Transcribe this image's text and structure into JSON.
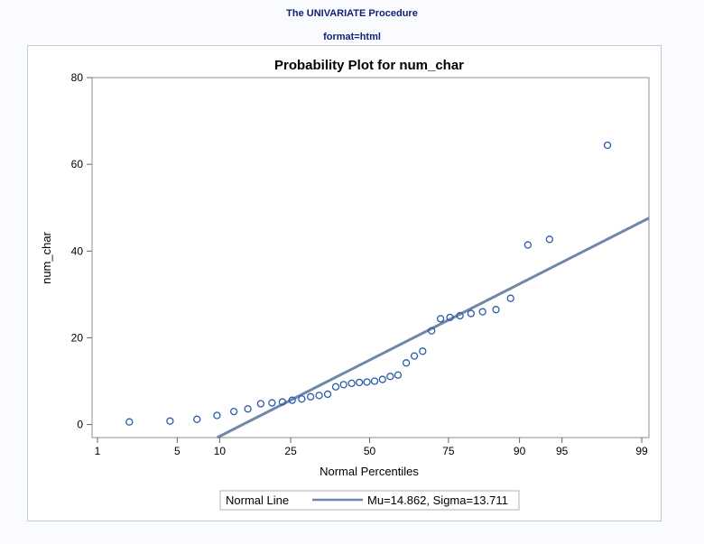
{
  "header": {
    "procedure_title": "The UNIVARIATE Procedure",
    "format_title": "format=html"
  },
  "chart_data": {
    "type": "scatter",
    "title": "Probability Plot for num_char",
    "xlabel": "Normal Percentiles",
    "ylabel": "num_char",
    "xscale": "normal-probability",
    "xticks": [
      1,
      5,
      10,
      25,
      50,
      75,
      90,
      95,
      99
    ],
    "xticklabels": [
      "1",
      "5",
      "10",
      "25",
      "50",
      "75",
      "90",
      "95",
      "99"
    ],
    "ylim": [
      -3,
      80
    ],
    "yticks": [
      0,
      20,
      40,
      60,
      80
    ],
    "grid": false,
    "legend_placement": "bottom",
    "legend": {
      "title": "Normal Line",
      "entry": "Mu=14.862, Sigma=13.711"
    },
    "reference_line": {
      "name": "Normal Line",
      "mu": 14.862,
      "sigma": 13.711,
      "color": "#6f87a8"
    },
    "marker_color": "#2a5aa8",
    "points": [
      {
        "x": 2.0,
        "y": 0.6
      },
      {
        "x": 4.4,
        "y": 0.8
      },
      {
        "x": 7.0,
        "y": 1.2
      },
      {
        "x": 9.6,
        "y": 2.1
      },
      {
        "x": 12.3,
        "y": 3.0
      },
      {
        "x": 14.9,
        "y": 3.6
      },
      {
        "x": 17.6,
        "y": 4.8
      },
      {
        "x": 20.2,
        "y": 5.0
      },
      {
        "x": 22.8,
        "y": 5.2
      },
      {
        "x": 25.4,
        "y": 5.6
      },
      {
        "x": 28.1,
        "y": 5.9
      },
      {
        "x": 30.7,
        "y": 6.4
      },
      {
        "x": 33.3,
        "y": 6.7
      },
      {
        "x": 36.0,
        "y": 7.0
      },
      {
        "x": 38.6,
        "y": 8.7
      },
      {
        "x": 41.2,
        "y": 9.2
      },
      {
        "x": 43.9,
        "y": 9.5
      },
      {
        "x": 46.5,
        "y": 9.7
      },
      {
        "x": 49.1,
        "y": 9.8
      },
      {
        "x": 51.7,
        "y": 10.0
      },
      {
        "x": 54.4,
        "y": 10.4
      },
      {
        "x": 57.0,
        "y": 11.1
      },
      {
        "x": 59.6,
        "y": 11.4
      },
      {
        "x": 62.3,
        "y": 14.2
      },
      {
        "x": 64.9,
        "y": 15.8
      },
      {
        "x": 67.5,
        "y": 16.9
      },
      {
        "x": 70.2,
        "y": 21.6
      },
      {
        "x": 72.8,
        "y": 24.4
      },
      {
        "x": 75.4,
        "y": 24.7
      },
      {
        "x": 78.0,
        "y": 25.1
      },
      {
        "x": 80.7,
        "y": 25.6
      },
      {
        "x": 83.3,
        "y": 26.0
      },
      {
        "x": 86.0,
        "y": 26.5
      },
      {
        "x": 88.6,
        "y": 29.1
      },
      {
        "x": 91.2,
        "y": 41.4
      },
      {
        "x": 93.8,
        "y": 42.7
      },
      {
        "x": 97.9,
        "y": 64.4
      }
    ]
  }
}
